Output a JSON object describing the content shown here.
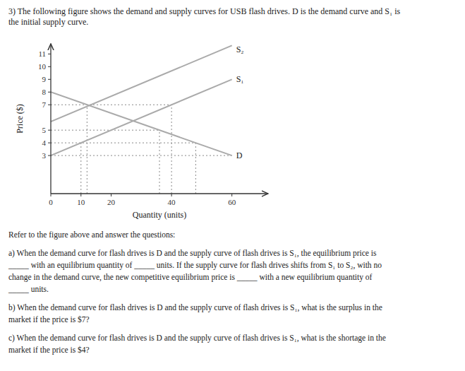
{
  "chart_data": {
    "type": "line",
    "title": "3) The following figure shows the demand and supply curves for USB flash drives. D is the demand curve and S₁ is\nthe initial supply curve.",
    "x_label": "Quantity (units)",
    "y_label": "Price ($)",
    "xlim": [
      0,
      72
    ],
    "ylim": [
      0,
      11.8
    ],
    "xticks": [
      0,
      10,
      20,
      40,
      60
    ],
    "yticks": [
      3,
      4,
      5,
      7,
      8,
      9,
      10,
      11
    ],
    "series": [
      {
        "name": "D",
        "color": "#aaaaaa",
        "line_style": "solid",
        "x": [
          0,
          60
        ],
        "values": [
          8,
          3
        ]
      },
      {
        "name": "S₁",
        "color": "#aaaaaa",
        "line_style": "solid",
        "x": [
          0,
          60
        ],
        "values": [
          3,
          9
        ]
      },
      {
        "name": "S₂",
        "color": "#aaaaaa",
        "line_style": "solid",
        "x": [
          0,
          60
        ],
        "values": [
          5.667,
          11.667
        ]
      }
    ],
    "reference_lines": [
      {
        "color": "#888888",
        "line_style": "dotted",
        "x": [
          0,
          60
        ],
        "values": [
          3,
          3
        ]
      },
      {
        "color": "#888888",
        "line_style": "dotted",
        "x": [
          0,
          48
        ],
        "values": [
          4,
          4
        ]
      },
      {
        "color": "#888888",
        "line_style": "dotted",
        "x": [
          10,
          10
        ],
        "values": [
          0,
          4
        ]
      },
      {
        "color": "#888888",
        "line_style": "dotted",
        "x": [
          48,
          48
        ],
        "values": [
          0,
          4
        ]
      },
      {
        "color": "#888888",
        "line_style": "dotted",
        "x": [
          0,
          36
        ],
        "values": [
          5,
          5
        ]
      },
      {
        "color": "#888888",
        "line_style": "dotted",
        "x": [
          36,
          36
        ],
        "values": [
          0,
          5
        ]
      },
      {
        "color": "#888888",
        "line_style": "dotted",
        "x": [
          0,
          40
        ],
        "values": [
          7,
          7
        ]
      },
      {
        "color": "#888888",
        "line_style": "dotted",
        "x": [
          12,
          12
        ],
        "values": [
          0,
          7
        ]
      },
      {
        "color": "#888888",
        "line_style": "dotted",
        "x": [
          40,
          40
        ],
        "values": [
          0,
          7
        ]
      }
    ],
    "annotations": [
      [
        "Refer to the figure above and answer the questions:"
      ],
      [
        "a) When the demand curve for flash drives is D and the supply curve of flash drives is S₁, the equilibrium price is",
        "_____ with an equilibrium quantity of _____ units. If the supply curve for flash drives shifts from S₁ to S₂, with no",
        "change in the demand curve, the new competitive equilibrium price is _____ with a new equilibrium quantity of",
        "_____ units."
      ],
      [
        "b) When the demand curve for flash drives is D and the supply curve of flash drives is S₁, what is the surplus in the",
        "market if the price is $7?"
      ],
      [
        "c) When the demand curve for flash drives is D and the supply curve of flash drives is S₁, what is the shortage in the",
        "market if the price is $4?"
      ]
    ]
  }
}
